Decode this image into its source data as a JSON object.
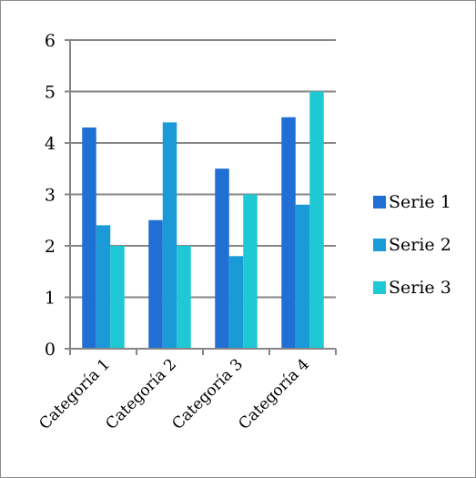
{
  "chart_data": {
    "type": "bar",
    "title": "",
    "xlabel": "",
    "ylabel": "",
    "categories": [
      "Categoría 1",
      "Categoría 2",
      "Categoría 3",
      "Categoría 4"
    ],
    "series": [
      {
        "name": "Serie 1",
        "values": [
          4.3,
          2.5,
          3.5,
          4.5
        ],
        "color": "#1f6fd4"
      },
      {
        "name": "Serie 2",
        "values": [
          2.4,
          4.4,
          1.8,
          2.8
        ],
        "color": "#1a9ad6"
      },
      {
        "name": "Serie 3",
        "values": [
          2.0,
          2.0,
          3.0,
          5.0
        ],
        "color": "#1ec8d4"
      }
    ],
    "ylim": [
      0,
      6
    ],
    "yticks": [
      0,
      1,
      2,
      3,
      4,
      5,
      6
    ],
    "grid": true,
    "legend_position": "right",
    "colors": {
      "gridline": "#868686",
      "axis": "#868686",
      "frame": "#8c8c8c"
    }
  }
}
